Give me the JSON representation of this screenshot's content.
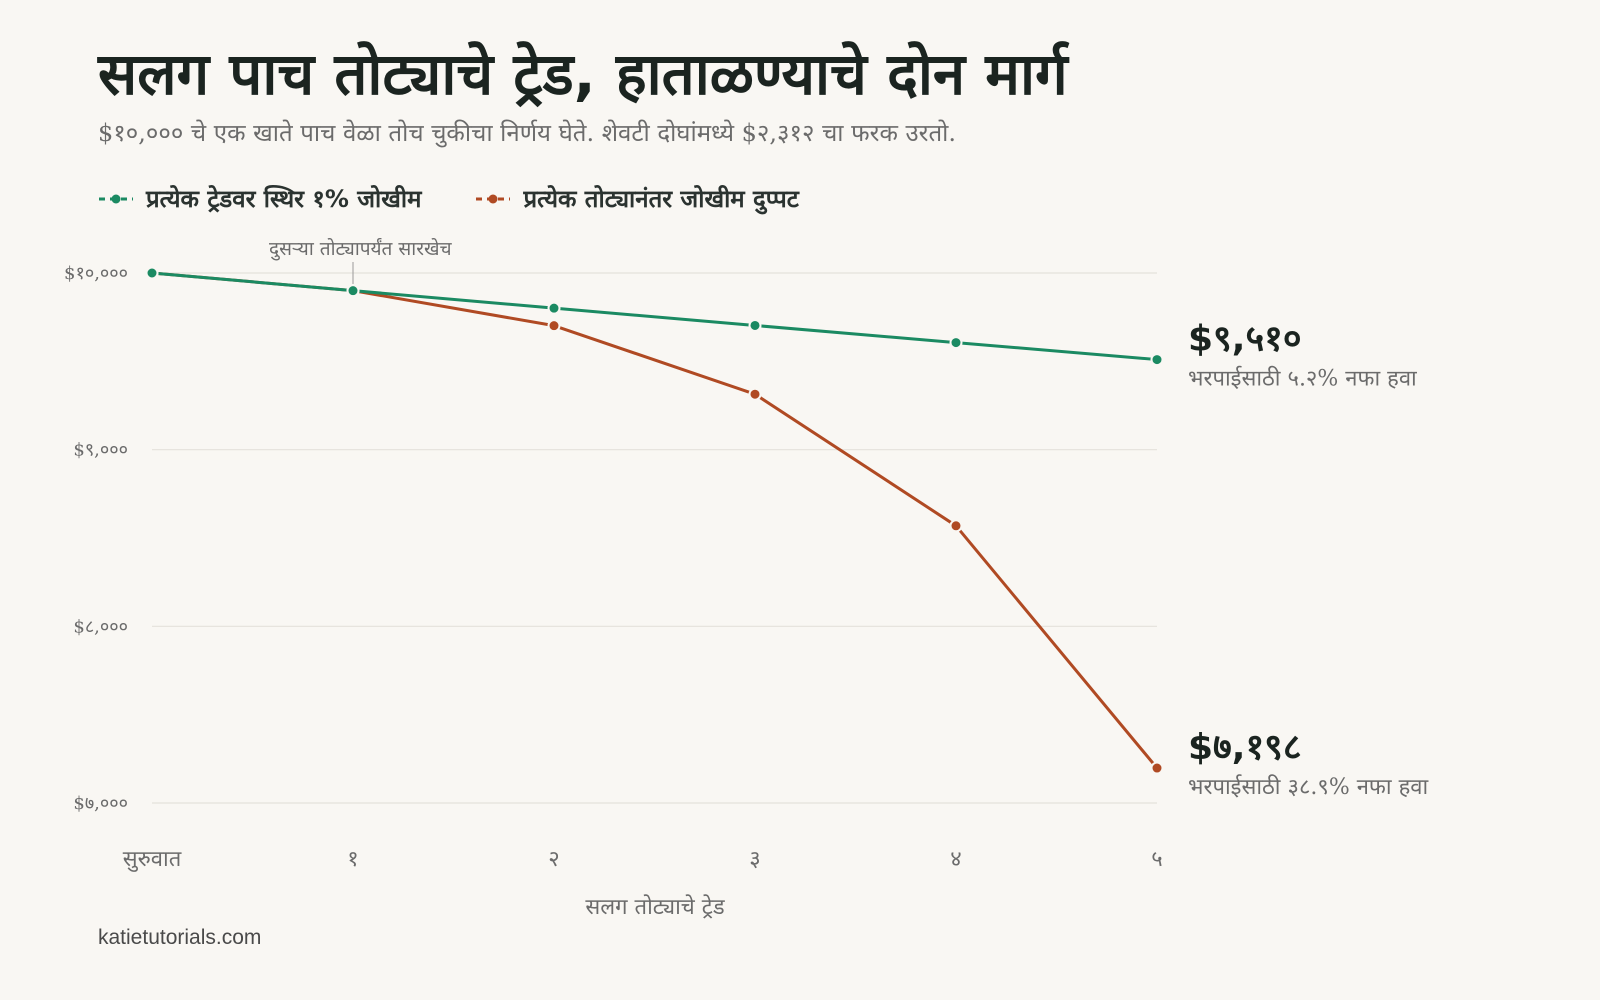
{
  "header": {
    "title": "सलग पाच तोट्याचे ट्रेड, हाताळण्याचे दोन मार्ग",
    "subtitle": "$१०,००० चे एक खाते पाच वेळा तोच चुकीचा निर्णय घेते. शेवटी दोघांमध्ये $२,३१२ चा फरक उरतो."
  },
  "footer": {
    "source": "katietutorials.com"
  },
  "chart_data": {
    "type": "line",
    "x": [
      "सुरुवात",
      "१",
      "२",
      "३",
      "४",
      "५"
    ],
    "xlabel": "सलग तोट्याचे ट्रेड",
    "ylabel": "",
    "ylim": [
      7000,
      10000
    ],
    "yticks": [
      10000,
      9000,
      8000,
      7000
    ],
    "ytick_labels": [
      "$१०,०००",
      "$९,०००",
      "$८,०००",
      "$७,०००"
    ],
    "grid": true,
    "legend_position": "top-left",
    "series": [
      {
        "name": "प्रत्येक ट्रेडवर स्थिर १% जोखीम",
        "color": "#1b8a62",
        "values": [
          10000,
          9900,
          9801,
          9703,
          9606,
          9510
        ],
        "end_value_label": "$९,५१०",
        "end_note": "भरपाईसाठी ५.२% नफा हवा"
      },
      {
        "name": "प्रत्येक तोट्यानंतर जोखीम दुप्पट",
        "color": "#b04a23",
        "values": [
          10000,
          9900,
          9702,
          9314,
          8569,
          7198
        ],
        "end_value_label": "$७,१९८",
        "end_note": "भरपाईसाठी ३८.९% नफा हवा"
      }
    ],
    "annotations": [
      {
        "text": "दुसऱ्या तोट्यापर्यंत सारखेच",
        "x_index": 1
      }
    ]
  }
}
